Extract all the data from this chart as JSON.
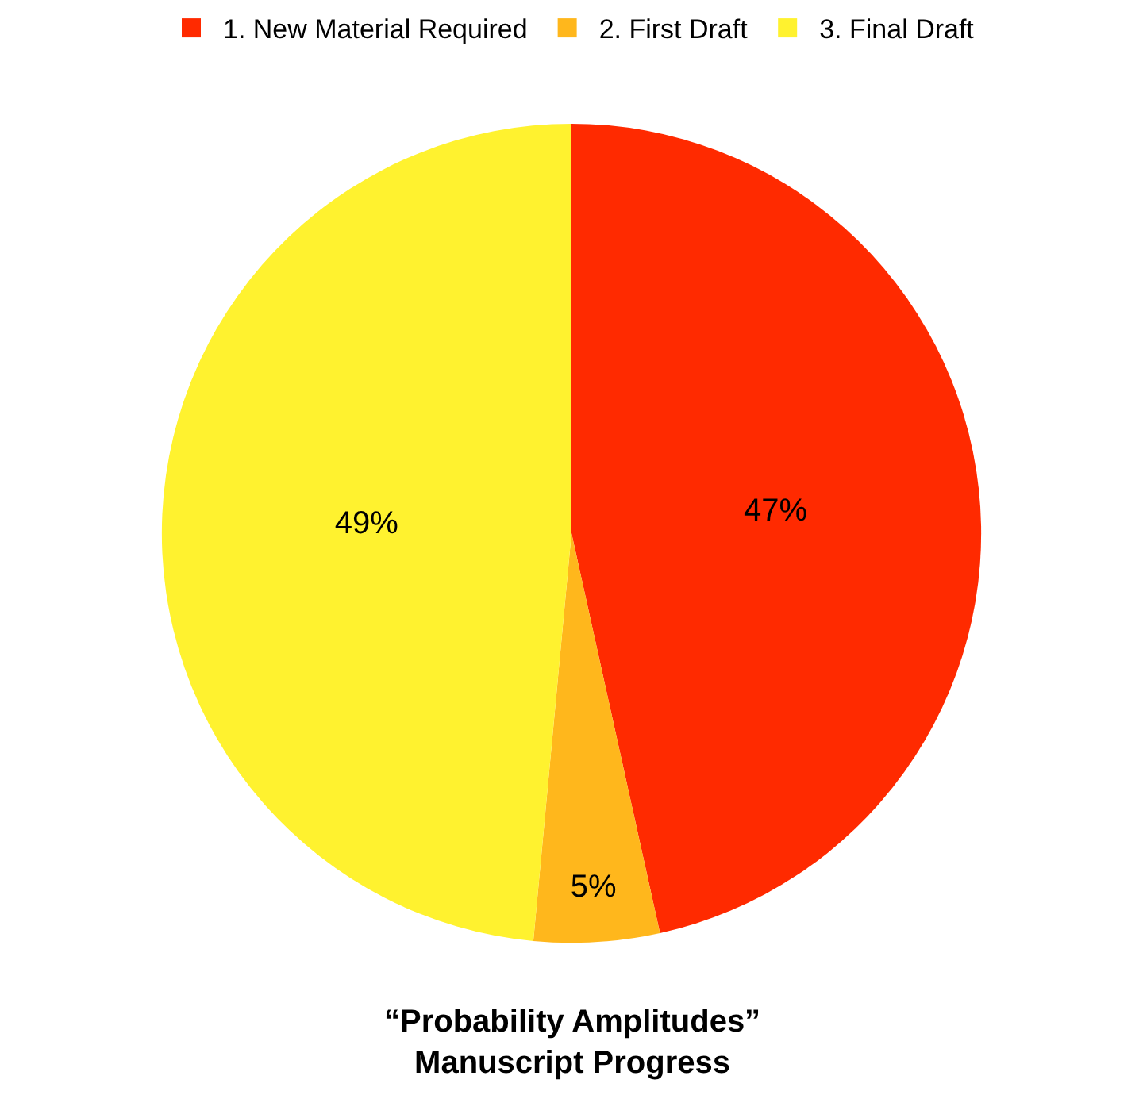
{
  "chart_data": {
    "type": "pie",
    "title": "“Probability Amplitudes”\nManuscript Progress",
    "categories": [
      "1. New Material Required",
      "2. First Draft",
      "3. Final Draft"
    ],
    "values": [
      47,
      5,
      49
    ],
    "colors": [
      "#ff2a00",
      "#ffb71c",
      "#fff22f"
    ],
    "value_labels": [
      "47%",
      "5%",
      "49%"
    ],
    "legend": "top"
  }
}
